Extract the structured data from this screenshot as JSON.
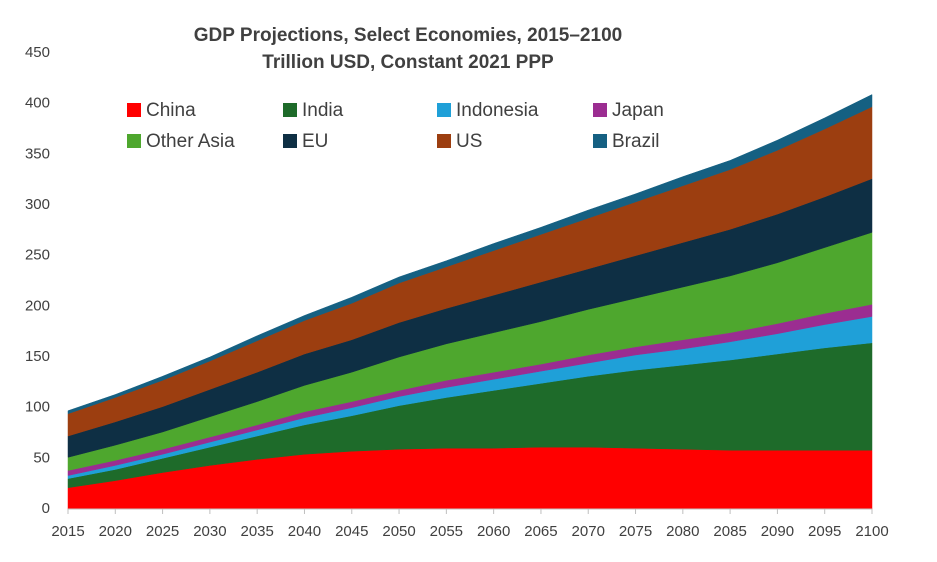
{
  "chart_data": {
    "type": "stacked_area",
    "title": "GDP Projections, Select Economies, 2015–2100",
    "subtitle": "Trillion USD, Constant 2021 PPP",
    "x": [
      2015,
      2020,
      2025,
      2030,
      2035,
      2040,
      2045,
      2050,
      2055,
      2060,
      2065,
      2070,
      2075,
      2080,
      2085,
      2090,
      2095,
      2100
    ],
    "series": [
      {
        "name": "China",
        "color": "#ff0000",
        "values": [
          21,
          28,
          36,
          43,
          49,
          54,
          57,
          59,
          60,
          60,
          61,
          61,
          60,
          59,
          58,
          58,
          58,
          58
        ]
      },
      {
        "name": "India",
        "color": "#1e6b2a",
        "values": [
          9,
          11,
          14,
          18,
          23,
          29,
          35,
          43,
          50,
          57,
          63,
          70,
          77,
          83,
          89,
          95,
          101,
          106
        ]
      },
      {
        "name": "Indonesia",
        "color": "#1fa0d8",
        "values": [
          3,
          4,
          4,
          5,
          6,
          7,
          8,
          9,
          10,
          11,
          12,
          13,
          15,
          16,
          18,
          20,
          23,
          26
        ]
      },
      {
        "name": "Japan",
        "color": "#9b2d91",
        "values": [
          5,
          5,
          5,
          5,
          5,
          6,
          6,
          6,
          7,
          7,
          7,
          8,
          8,
          9,
          9,
          10,
          11,
          12
        ]
      },
      {
        "name": "Other Asia",
        "color": "#4ea72e",
        "values": [
          13,
          15,
          17,
          20,
          23,
          26,
          29,
          33,
          36,
          39,
          42,
          45,
          48,
          52,
          56,
          60,
          65,
          71
        ]
      },
      {
        "name": "EU",
        "color": "#0e2f44",
        "values": [
          21,
          23,
          25,
          27,
          29,
          31,
          32,
          34,
          35,
          37,
          39,
          40,
          42,
          44,
          46,
          48,
          50,
          53
        ]
      },
      {
        "name": "US",
        "color": "#9c3e10",
        "values": [
          22,
          24,
          26,
          28,
          31,
          33,
          36,
          39,
          41,
          44,
          47,
          50,
          53,
          56,
          59,
          63,
          67,
          71
        ]
      },
      {
        "name": "Brazil",
        "color": "#156082",
        "values": [
          3,
          3,
          4,
          4,
          5,
          5,
          6,
          6,
          6,
          7,
          7,
          8,
          8,
          9,
          9,
          10,
          11,
          12
        ]
      }
    ],
    "xlim": [
      2015,
      2100
    ],
    "xticks": [
      2015,
      2020,
      2025,
      2030,
      2035,
      2040,
      2045,
      2050,
      2055,
      2060,
      2065,
      2070,
      2075,
      2080,
      2085,
      2090,
      2095,
      2100
    ],
    "ylim": [
      0,
      450
    ],
    "yticks": [
      0,
      50,
      100,
      150,
      200,
      250,
      300,
      350,
      400,
      450
    ],
    "grid": false,
    "legend": "top"
  }
}
